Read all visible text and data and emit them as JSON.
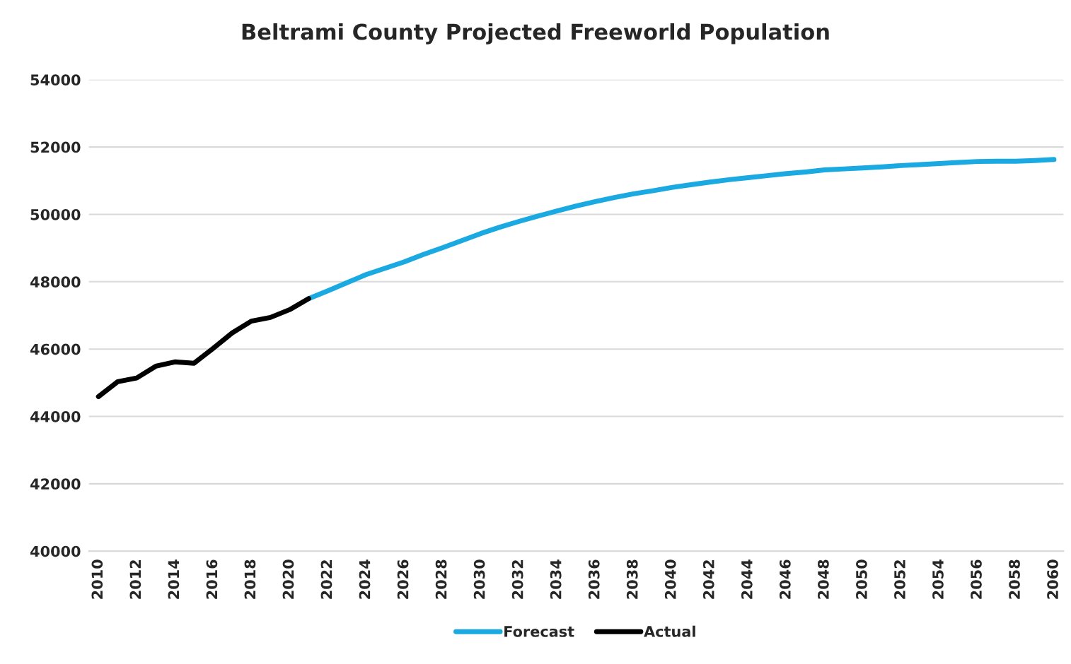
{
  "chart_data": {
    "type": "line",
    "title": "Beltrami County Projected Freeworld Population",
    "categories": [
      "2010",
      null,
      "2012",
      null,
      "2014",
      null,
      "2016",
      null,
      "2018",
      null,
      "2020",
      null,
      "2022",
      null,
      "2024",
      null,
      "2026",
      null,
      "2028",
      null,
      "2030",
      null,
      "2032",
      null,
      "2034",
      null,
      "2036",
      null,
      "2038",
      null,
      "2040",
      null,
      "2042",
      null,
      "2044",
      null,
      "2046",
      null,
      "2048",
      null,
      "2050",
      null,
      "2052",
      null,
      "2054",
      null,
      "2056",
      null,
      "2058",
      null,
      "2060"
    ],
    "series": [
      {
        "name": "Forecast",
        "color": "#1ba9e1",
        "values": [
          null,
          null,
          null,
          null,
          null,
          null,
          null,
          null,
          null,
          null,
          null,
          47500,
          47730,
          47970,
          48210,
          48400,
          48590,
          48810,
          49010,
          49220,
          49430,
          49620,
          49790,
          49950,
          50100,
          50250,
          50380,
          50500,
          50610,
          50700,
          50800,
          50880,
          50960,
          51030,
          51090,
          51150,
          51210,
          51260,
          51320,
          51350,
          51380,
          51410,
          51450,
          51480,
          51510,
          51540,
          51570,
          51580,
          51580,
          51600,
          51630
        ]
      },
      {
        "name": "Actual",
        "color": "#000000",
        "values": [
          44590,
          45030,
          45140,
          45490,
          45620,
          45580,
          46020,
          46480,
          46830,
          46940,
          47170,
          47500,
          null,
          null,
          null,
          null,
          null,
          null,
          null,
          null,
          null,
          null,
          null,
          null,
          null,
          null,
          null,
          null,
          null,
          null,
          null,
          null,
          null,
          null,
          null,
          null,
          null,
          null,
          null,
          null,
          null,
          null,
          null,
          null,
          null,
          null,
          null,
          null,
          null,
          null,
          null
        ]
      }
    ],
    "ylim": [
      40000,
      54000
    ],
    "yticks": [
      40000,
      42000,
      44000,
      46000,
      48000,
      50000,
      52000,
      54000
    ],
    "grid": "y",
    "legend": "bottom",
    "marker": "none",
    "line_style": "solid"
  }
}
